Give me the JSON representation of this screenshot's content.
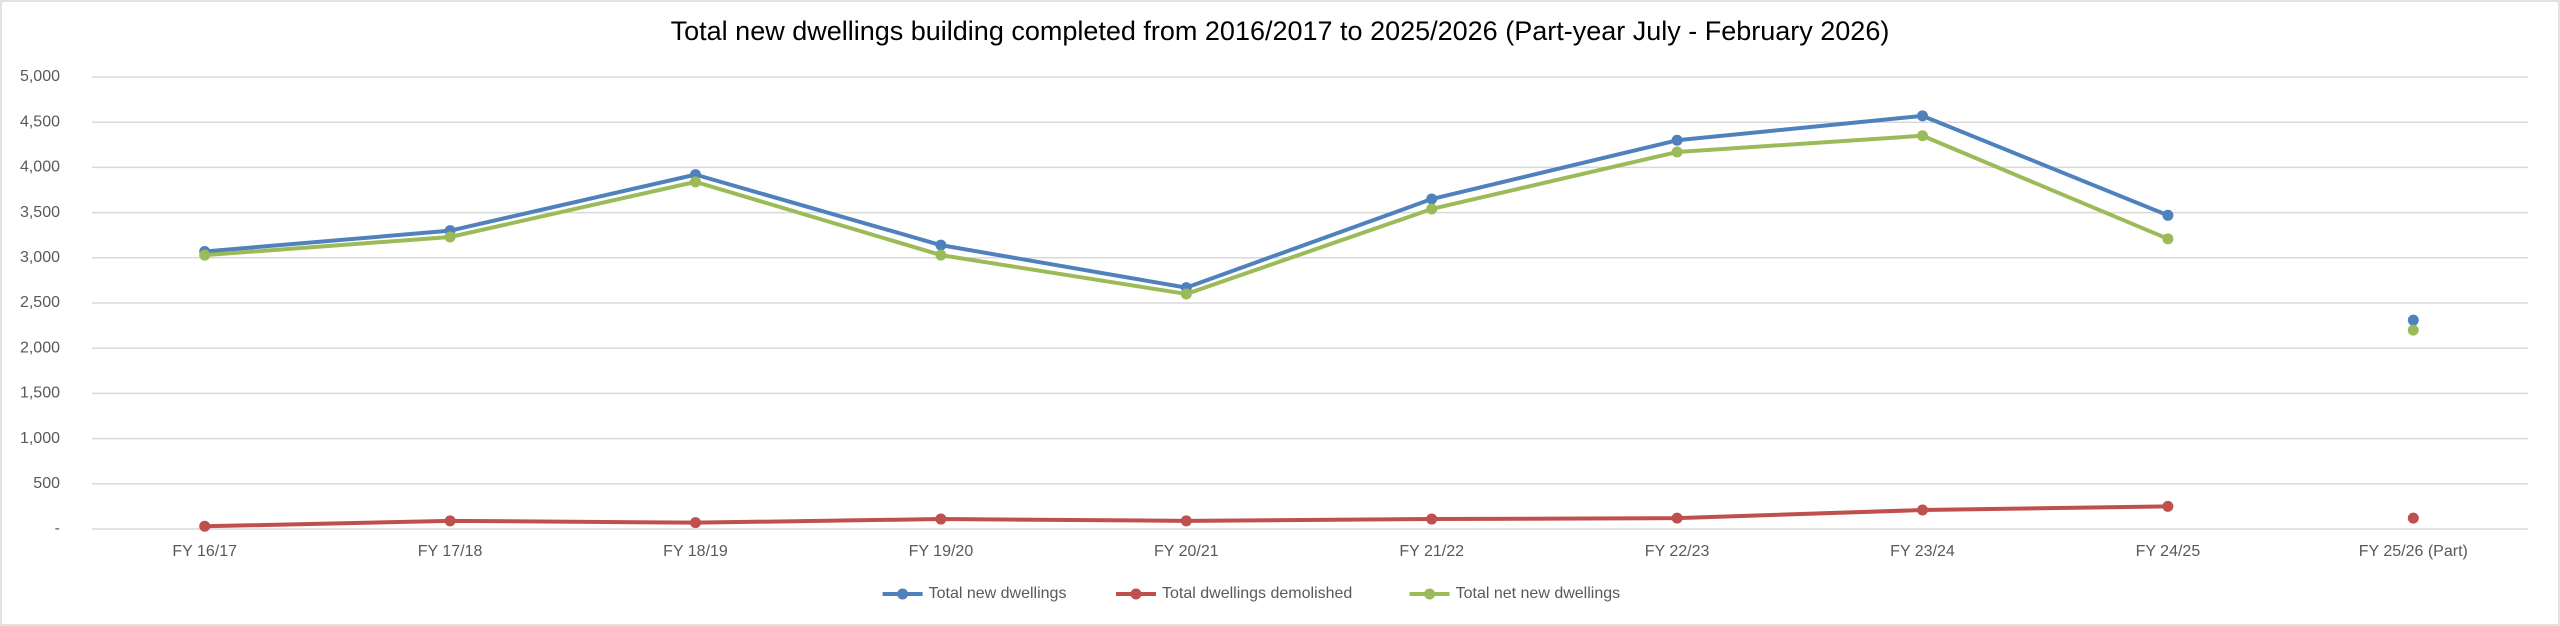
{
  "chart_data": {
    "type": "line",
    "title": "Total new dwellings building completed from 2016/2017 to 2025/2026 (Part-year July - February 2026)",
    "categories": [
      "FY 16/17",
      "FY 17/18",
      "FY 18/19",
      "FY 19/20",
      "FY 20/21",
      "FY 21/22",
      "FY 22/23",
      "FY 23/24",
      "FY 24/25",
      "FY 25/26 (Part)"
    ],
    "series": [
      {
        "name": "Total new dwellings",
        "color": "#4f81bd",
        "values": [
          3070,
          3300,
          3920,
          3140,
          2670,
          3650,
          4300,
          4570,
          3470,
          2310
        ]
      },
      {
        "name": "Total dwellings demolished",
        "color": "#c0504d",
        "values": [
          30,
          90,
          70,
          110,
          90,
          110,
          120,
          210,
          250,
          120
        ]
      },
      {
        "name": "Total net new dwellings",
        "color": "#9bbb59",
        "values": [
          3030,
          3230,
          3840,
          3030,
          2600,
          3540,
          4170,
          4350,
          3210,
          2200
        ]
      }
    ],
    "connect_last_point": false,
    "ylim": [
      0,
      5000
    ],
    "yticks": [
      {
        "value": 0,
        "label": "-"
      },
      500,
      {
        "value": 1000,
        "label": "1,000"
      },
      {
        "value": 1500,
        "label": "1,500"
      },
      {
        "value": 2000,
        "label": "2,000"
      },
      {
        "value": 2500,
        "label": "2,500"
      },
      {
        "value": 3000,
        "label": "3,000"
      },
      {
        "value": 3500,
        "label": "3,500"
      },
      {
        "value": 4000,
        "label": "4,000"
      },
      {
        "value": 4500,
        "label": "4,500"
      },
      {
        "value": 5000,
        "label": "5,000"
      }
    ],
    "grid": true,
    "legend": "bottom"
  }
}
